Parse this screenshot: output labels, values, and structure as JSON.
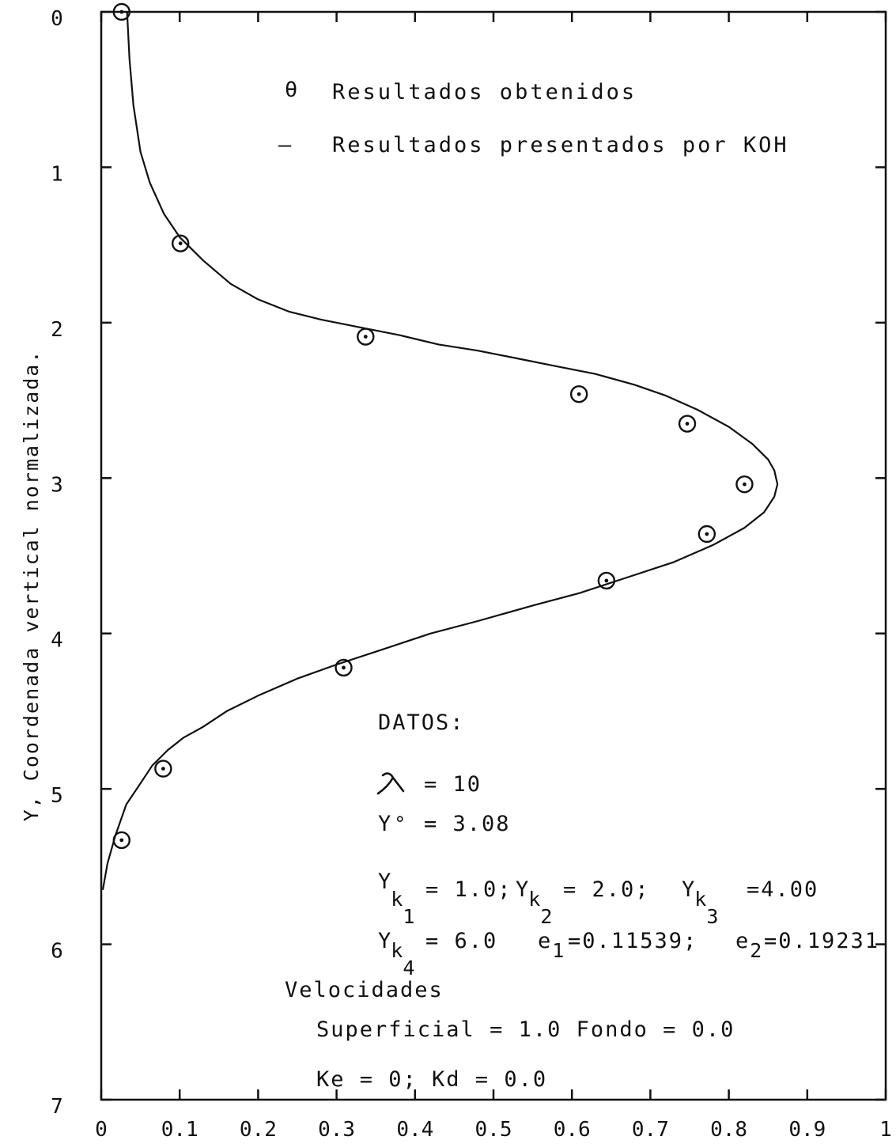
{
  "chart_data": {
    "type": "scatter",
    "title": "",
    "xlabel": "",
    "ylabel": "Y,   Coordenada vertical normalizada.",
    "xlim": [
      0,
      1
    ],
    "ylim": [
      0,
      7
    ],
    "y_inverted": true,
    "x_ticks": [
      "0",
      "0.1",
      "0.2",
      "0.3",
      "0.4",
      "0.5",
      "0.6",
      "0.7",
      "0.8",
      "0.9",
      "1"
    ],
    "y_ticks": [
      "0",
      "1",
      "2",
      "3",
      "4",
      "5",
      "6",
      "7"
    ],
    "legend": {
      "placement": "top-right",
      "entries": [
        {
          "symbol": "θ",
          "label": "Resultados obtenidos"
        },
        {
          "symbol": "—",
          "label": "Resultados presentados por KOH"
        }
      ]
    },
    "series": [
      {
        "name": "Resultados obtenidos",
        "kind": "points",
        "x": [
          0.026,
          0.101,
          0.337,
          0.609,
          0.747,
          0.82,
          0.772,
          0.644,
          0.309,
          0.079,
          0.026
        ],
        "y": [
          0.0,
          1.49,
          2.09,
          2.46,
          2.65,
          3.04,
          3.36,
          3.66,
          4.22,
          4.87,
          5.33
        ]
      },
      {
        "name": "Resultados presentados por KOH",
        "kind": "line",
        "x": [
          0.033,
          0.036,
          0.041,
          0.05,
          0.062,
          0.08,
          0.1,
          0.13,
          0.165,
          0.2,
          0.24,
          0.28,
          0.33,
          0.38,
          0.43,
          0.48,
          0.53,
          0.58,
          0.63,
          0.68,
          0.72,
          0.76,
          0.8,
          0.83,
          0.85,
          0.858,
          0.862,
          0.858,
          0.845,
          0.82,
          0.78,
          0.73,
          0.67,
          0.61,
          0.55,
          0.48,
          0.42,
          0.36,
          0.3,
          0.25,
          0.2,
          0.16,
          0.13,
          0.105,
          0.085,
          0.065,
          0.048,
          0.032,
          0.018,
          0.008,
          0.002
        ],
        "y": [
          0.0,
          0.3,
          0.6,
          0.9,
          1.1,
          1.3,
          1.45,
          1.6,
          1.75,
          1.85,
          1.93,
          1.98,
          2.03,
          2.08,
          2.14,
          2.18,
          2.23,
          2.28,
          2.33,
          2.4,
          2.47,
          2.56,
          2.67,
          2.78,
          2.88,
          2.95,
          3.04,
          3.12,
          3.22,
          3.32,
          3.43,
          3.54,
          3.64,
          3.74,
          3.82,
          3.92,
          4.0,
          4.1,
          4.2,
          4.29,
          4.4,
          4.5,
          4.6,
          4.67,
          4.75,
          4.85,
          4.98,
          5.1,
          5.3,
          5.48,
          5.65
        ]
      }
    ],
    "annotations": {
      "heading": "DATOS:",
      "lambda": "= 10",
      "y0": "= 3.08",
      "yk_row": [
        "= 1.0; ",
        "= 2.0; ",
        "=4.00"
      ],
      "yk4": "= 6.0",
      "e1": "=0.11539;",
      "e2": "=0.19231",
      "velocidades": "Velocidades",
      "superficial": "Superficial = 1.0   Fondo = 0.0",
      "ke_kd": "Ke = 0;  Kd = 0.0"
    }
  }
}
